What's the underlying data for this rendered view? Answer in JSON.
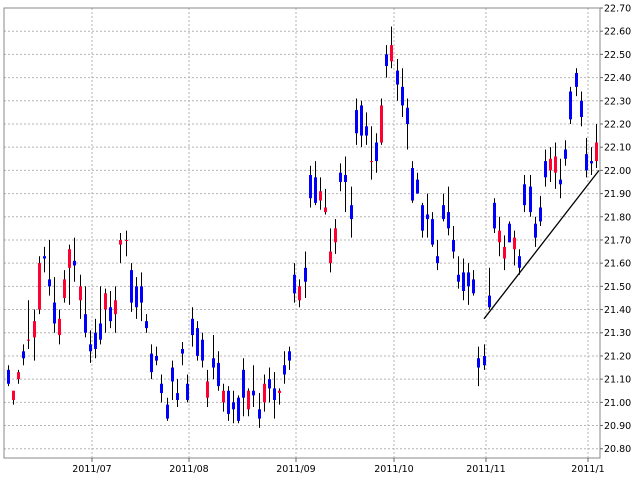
{
  "chart_data": {
    "type": "candlestick",
    "title": "",
    "xlabel": "",
    "ylabel": "",
    "x_tick_labels": [
      "2011/07",
      "2011/08",
      "2011/09",
      "2011/10",
      "2011/11",
      "2011/1"
    ],
    "y_tick_labels": [
      "20.80",
      "20.90",
      "21.00",
      "21.10",
      "21.20",
      "21.30",
      "21.40",
      "21.50",
      "21.60",
      "21.70",
      "21.80",
      "21.90",
      "22.00",
      "22.10",
      "22.20",
      "22.30",
      "22.40",
      "22.50",
      "22.60",
      "22.70"
    ],
    "ylim": [
      20.76,
      22.7
    ],
    "grid": true,
    "up_color": "#ff0033",
    "down_color": "#0000ff",
    "wick_color": "#000000",
    "trendline": {
      "start": [
        "2011/11 (start)",
        21.36
      ],
      "end": [
        "2011/12 (latest)",
        22.0
      ],
      "color": "#000000"
    },
    "candles": [
      {
        "o": 21.14,
        "h": 21.16,
        "l": 21.07,
        "c": 21.08
      },
      {
        "o": 21.01,
        "h": 21.05,
        "l": 20.99,
        "c": 21.05
      },
      {
        "o": 21.1,
        "h": 21.14,
        "l": 21.08,
        "c": 21.13
      },
      {
        "o": 21.22,
        "h": 21.25,
        "l": 21.16,
        "c": 21.19
      },
      {
        "o": 21.27,
        "h": 21.44,
        "l": 21.23,
        "c": 21.27
      },
      {
        "o": 21.28,
        "h": 21.4,
        "l": 21.18,
        "c": 21.35
      },
      {
        "o": 21.4,
        "h": 21.63,
        "l": 21.38,
        "c": 21.6
      },
      {
        "o": 21.63,
        "h": 21.67,
        "l": 21.56,
        "c": 21.62
      },
      {
        "o": 21.53,
        "h": 21.7,
        "l": 21.46,
        "c": 21.5
      },
      {
        "o": 21.43,
        "h": 21.54,
        "l": 21.3,
        "c": 21.34
      },
      {
        "o": 21.29,
        "h": 21.4,
        "l": 21.25,
        "c": 21.36
      },
      {
        "o": 21.45,
        "h": 21.57,
        "l": 21.43,
        "c": 21.53
      },
      {
        "o": 21.58,
        "h": 21.68,
        "l": 21.42,
        "c": 21.66
      },
      {
        "o": 21.61,
        "h": 21.71,
        "l": 21.52,
        "c": 21.59
      },
      {
        "o": 21.44,
        "h": 21.55,
        "l": 21.36,
        "c": 21.5
      },
      {
        "o": 21.38,
        "h": 21.5,
        "l": 21.28,
        "c": 21.3
      },
      {
        "o": 21.25,
        "h": 21.31,
        "l": 21.17,
        "c": 21.22
      },
      {
        "o": 21.3,
        "h": 21.36,
        "l": 21.19,
        "c": 21.23
      },
      {
        "o": 21.34,
        "h": 21.5,
        "l": 21.25,
        "c": 21.27
      },
      {
        "o": 21.4,
        "h": 21.49,
        "l": 21.3,
        "c": 21.47
      },
      {
        "o": 21.41,
        "h": 21.48,
        "l": 21.32,
        "c": 21.35
      },
      {
        "o": 21.38,
        "h": 21.5,
        "l": 21.3,
        "c": 21.44
      },
      {
        "o": 21.68,
        "h": 21.73,
        "l": 21.6,
        "c": 21.7
      },
      {
        "o": 21.7,
        "h": 21.74,
        "l": 21.63,
        "c": 21.7
      },
      {
        "o": 21.57,
        "h": 21.6,
        "l": 21.39,
        "c": 21.43
      },
      {
        "o": 21.5,
        "h": 21.54,
        "l": 21.36,
        "c": 21.41
      },
      {
        "o": 21.5,
        "h": 21.56,
        "l": 21.35,
        "c": 21.43
      },
      {
        "o": 21.35,
        "h": 21.38,
        "l": 21.3,
        "c": 21.32
      },
      {
        "o": 21.21,
        "h": 21.25,
        "l": 21.1,
        "c": 21.13
      },
      {
        "o": 21.2,
        "h": 21.24,
        "l": 21.16,
        "c": 21.18
      },
      {
        "o": 21.08,
        "h": 21.12,
        "l": 21.0,
        "c": 21.04
      },
      {
        "o": 20.99,
        "h": 21.02,
        "l": 20.92,
        "c": 20.93
      },
      {
        "o": 21.15,
        "h": 21.18,
        "l": 21.01,
        "c": 21.09
      },
      {
        "o": 21.04,
        "h": 21.1,
        "l": 20.98,
        "c": 21.01
      },
      {
        "o": 21.23,
        "h": 21.26,
        "l": 21.16,
        "c": 21.21
      },
      {
        "o": 21.08,
        "h": 21.12,
        "l": 21.0,
        "c": 21.01
      },
      {
        "o": 21.36,
        "h": 21.41,
        "l": 21.24,
        "c": 21.29
      },
      {
        "o": 21.32,
        "h": 21.35,
        "l": 21.18,
        "c": 21.2
      },
      {
        "o": 21.27,
        "h": 21.3,
        "l": 21.15,
        "c": 21.18
      },
      {
        "o": 21.02,
        "h": 21.14,
        "l": 20.98,
        "c": 21.09
      },
      {
        "o": 21.19,
        "h": 21.29,
        "l": 21.1,
        "c": 21.15
      },
      {
        "o": 21.17,
        "h": 21.22,
        "l": 21.05,
        "c": 21.07
      },
      {
        "o": 21.0,
        "h": 21.08,
        "l": 20.96,
        "c": 21.05
      },
      {
        "o": 21.05,
        "h": 21.07,
        "l": 20.92,
        "c": 20.95
      },
      {
        "o": 21.0,
        "h": 21.05,
        "l": 20.91,
        "c": 20.97
      },
      {
        "o": 21.02,
        "h": 21.03,
        "l": 20.91,
        "c": 20.92
      },
      {
        "o": 21.14,
        "h": 21.19,
        "l": 20.94,
        "c": 21.02
      },
      {
        "o": 20.97,
        "h": 21.06,
        "l": 20.94,
        "c": 21.05
      },
      {
        "o": 21.05,
        "h": 21.16,
        "l": 20.98,
        "c": 21.03
      },
      {
        "o": 20.97,
        "h": 21.04,
        "l": 20.89,
        "c": 20.93
      },
      {
        "o": 21.0,
        "h": 21.12,
        "l": 20.96,
        "c": 21.08
      },
      {
        "o": 21.1,
        "h": 21.15,
        "l": 21.0,
        "c": 21.06
      },
      {
        "o": 21.06,
        "h": 21.13,
        "l": 20.93,
        "c": 21.01
      },
      {
        "o": 21.04,
        "h": 21.06,
        "l": 20.99,
        "c": 21.05
      },
      {
        "o": 21.16,
        "h": 21.22,
        "l": 21.08,
        "c": 21.12
      },
      {
        "o": 21.22,
        "h": 21.24,
        "l": 21.14,
        "c": 21.18
      },
      {
        "o": 21.55,
        "h": 21.6,
        "l": 21.43,
        "c": 21.47
      },
      {
        "o": 21.44,
        "h": 21.53,
        "l": 21.41,
        "c": 21.5
      },
      {
        "o": 21.58,
        "h": 21.65,
        "l": 21.45,
        "c": 21.52
      },
      {
        "o": 21.98,
        "h": 22.02,
        "l": 21.84,
        "c": 21.88
      },
      {
        "o": 21.97,
        "h": 22.04,
        "l": 21.85,
        "c": 21.86
      },
      {
        "o": 21.87,
        "h": 21.97,
        "l": 21.83,
        "c": 21.91
      },
      {
        "o": 21.82,
        "h": 21.92,
        "l": 21.81,
        "c": 21.84
      },
      {
        "o": 21.6,
        "h": 21.75,
        "l": 21.56,
        "c": 21.65
      },
      {
        "o": 21.69,
        "h": 21.79,
        "l": 21.64,
        "c": 21.75
      },
      {
        "o": 21.99,
        "h": 22.03,
        "l": 21.91,
        "c": 21.95
      },
      {
        "o": 21.98,
        "h": 22.06,
        "l": 21.82,
        "c": 21.95
      },
      {
        "o": 21.85,
        "h": 21.93,
        "l": 21.71,
        "c": 21.79
      },
      {
        "o": 22.26,
        "h": 22.31,
        "l": 22.11,
        "c": 22.16
      },
      {
        "o": 22.28,
        "h": 22.3,
        "l": 22.1,
        "c": 22.15
      },
      {
        "o": 22.19,
        "h": 22.25,
        "l": 22.11,
        "c": 22.15
      },
      {
        "o": 22.04,
        "h": 22.19,
        "l": 21.96,
        "c": 22.04
      },
      {
        "o": 22.12,
        "h": 22.16,
        "l": 21.99,
        "c": 22.04
      },
      {
        "o": 22.12,
        "h": 22.31,
        "l": 22.11,
        "c": 22.28
      },
      {
        "o": 22.5,
        "h": 22.54,
        "l": 22.4,
        "c": 22.45
      },
      {
        "o": 22.47,
        "h": 22.62,
        "l": 22.44,
        "c": 22.54
      },
      {
        "o": 22.43,
        "h": 22.48,
        "l": 22.3,
        "c": 22.37
      },
      {
        "o": 22.36,
        "h": 22.44,
        "l": 22.23,
        "c": 22.28
      },
      {
        "o": 22.27,
        "h": 22.31,
        "l": 22.09,
        "c": 22.2
      },
      {
        "o": 22.01,
        "h": 22.04,
        "l": 21.86,
        "c": 21.87
      },
      {
        "o": 21.96,
        "h": 21.99,
        "l": 21.9,
        "c": 21.9
      },
      {
        "o": 21.85,
        "h": 21.86,
        "l": 21.71,
        "c": 21.74
      },
      {
        "o": 21.81,
        "h": 21.9,
        "l": 21.71,
        "c": 21.79
      },
      {
        "o": 21.79,
        "h": 21.82,
        "l": 21.67,
        "c": 21.68
      },
      {
        "o": 21.63,
        "h": 21.7,
        "l": 21.57,
        "c": 21.6
      },
      {
        "o": 21.85,
        "h": 21.9,
        "l": 21.78,
        "c": 21.79
      },
      {
        "o": 21.82,
        "h": 21.93,
        "l": 21.72,
        "c": 21.75
      },
      {
        "o": 21.7,
        "h": 21.76,
        "l": 21.62,
        "c": 21.65
      },
      {
        "o": 21.55,
        "h": 21.63,
        "l": 21.49,
        "c": 21.52
      },
      {
        "o": 21.56,
        "h": 21.62,
        "l": 21.44,
        "c": 21.48
      },
      {
        "o": 21.56,
        "h": 21.6,
        "l": 21.42,
        "c": 21.5
      },
      {
        "o": 21.53,
        "h": 21.57,
        "l": 21.46,
        "c": 21.47
      },
      {
        "o": 21.19,
        "h": 21.24,
        "l": 21.07,
        "c": 21.15
      },
      {
        "o": 21.2,
        "h": 21.25,
        "l": 21.14,
        "c": 21.16
      },
      {
        "o": 21.46,
        "h": 21.58,
        "l": 21.4,
        "c": 21.41
      },
      {
        "o": 21.86,
        "h": 21.88,
        "l": 21.73,
        "c": 21.75
      },
      {
        "o": 21.69,
        "h": 21.8,
        "l": 21.63,
        "c": 21.74
      },
      {
        "o": 21.62,
        "h": 21.72,
        "l": 21.57,
        "c": 21.67
      },
      {
        "o": 21.77,
        "h": 21.78,
        "l": 21.69,
        "c": 21.69
      },
      {
        "o": 21.66,
        "h": 21.74,
        "l": 21.59,
        "c": 21.71
      },
      {
        "o": 21.63,
        "h": 21.66,
        "l": 21.55,
        "c": 21.58
      },
      {
        "o": 21.94,
        "h": 21.98,
        "l": 21.82,
        "c": 21.85
      },
      {
        "o": 21.93,
        "h": 21.98,
        "l": 21.8,
        "c": 21.82
      },
      {
        "o": 21.77,
        "h": 21.8,
        "l": 21.67,
        "c": 21.71
      },
      {
        "o": 21.84,
        "h": 21.89,
        "l": 21.76,
        "c": 21.78
      },
      {
        "o": 22.04,
        "h": 22.09,
        "l": 21.93,
        "c": 21.97
      },
      {
        "o": 22.0,
        "h": 22.1,
        "l": 21.95,
        "c": 22.05
      },
      {
        "o": 21.99,
        "h": 22.12,
        "l": 21.92,
        "c": 22.06
      },
      {
        "o": 21.96,
        "h": 22.05,
        "l": 21.88,
        "c": 21.94
      },
      {
        "o": 22.09,
        "h": 22.13,
        "l": 22.02,
        "c": 22.05
      },
      {
        "o": 22.34,
        "h": 22.36,
        "l": 22.2,
        "c": 22.22
      },
      {
        "o": 22.42,
        "h": 22.44,
        "l": 22.32,
        "c": 22.36
      },
      {
        "o": 22.3,
        "h": 22.34,
        "l": 22.19,
        "c": 22.23
      },
      {
        "o": 22.07,
        "h": 22.14,
        "l": 21.97,
        "c": 22.0
      },
      {
        "o": 22.04,
        "h": 22.1,
        "l": 21.98,
        "c": 22.03
      },
      {
        "o": 22.04,
        "h": 22.2,
        "l": 22.01,
        "c": 22.12
      }
    ]
  }
}
